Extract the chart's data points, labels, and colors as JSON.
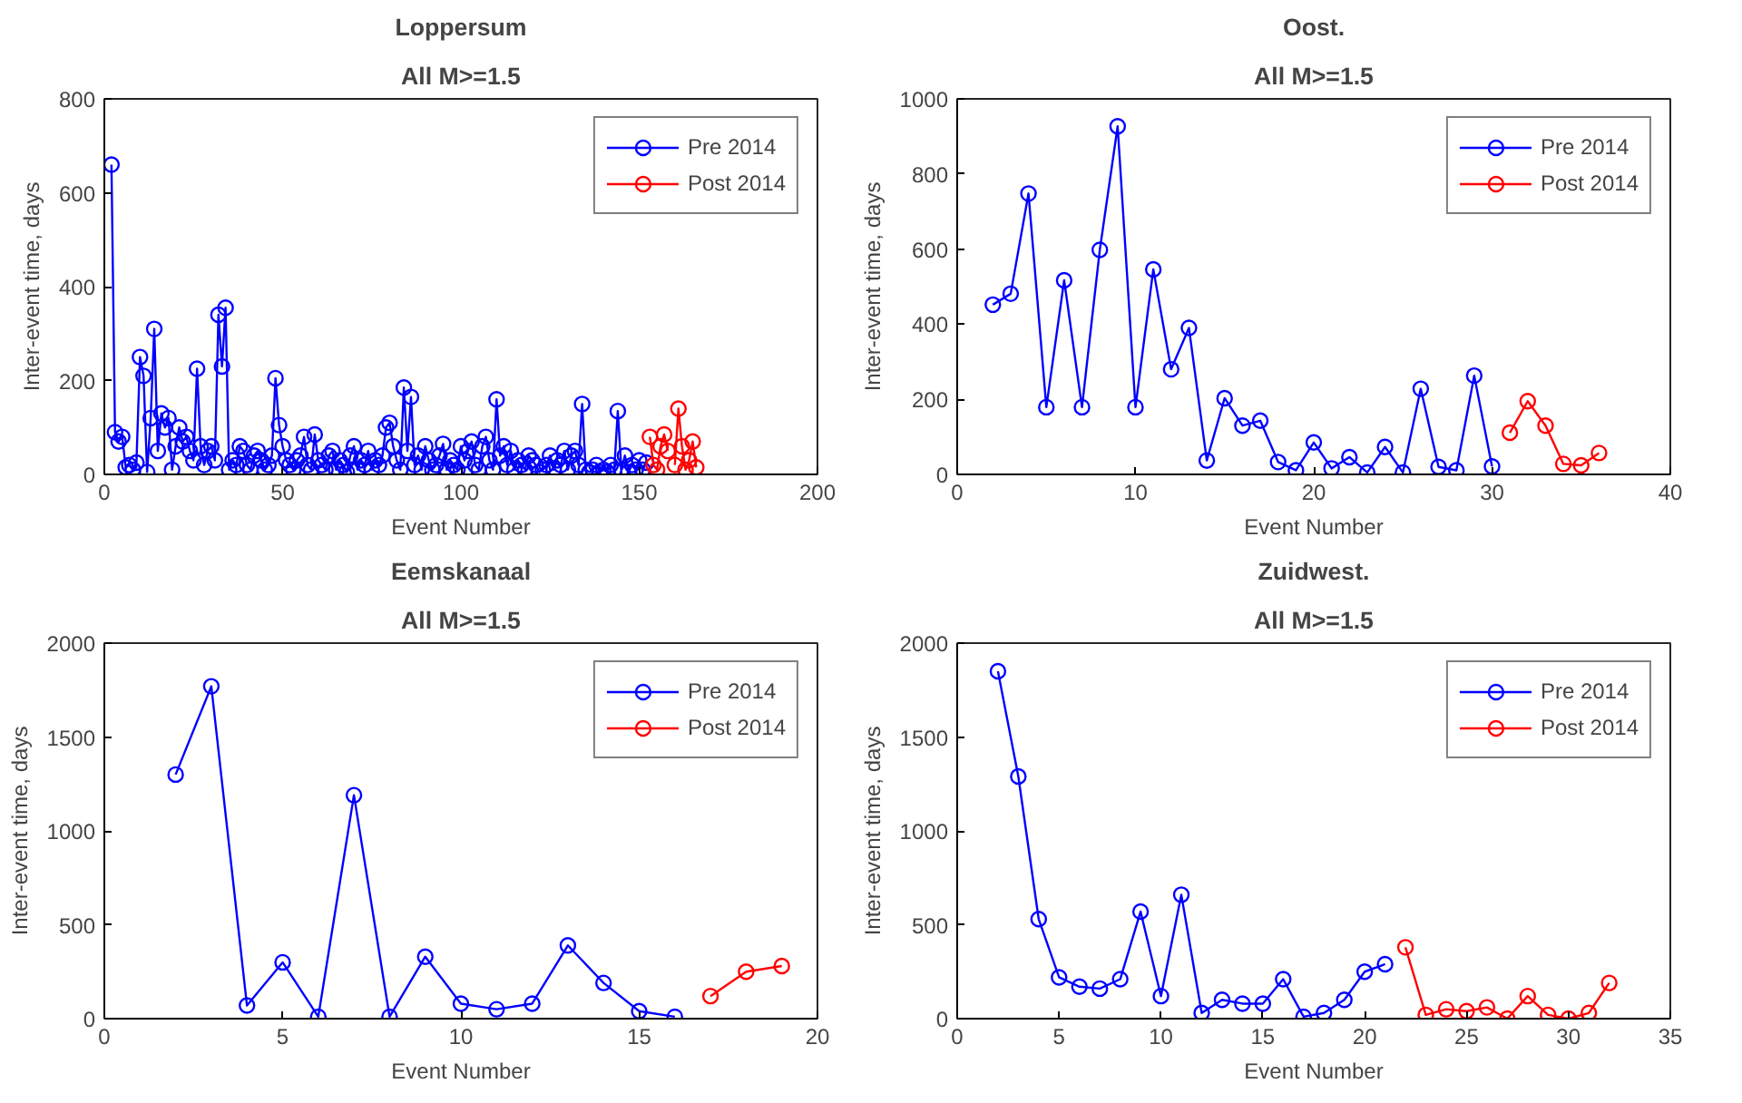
{
  "chart_data": [
    {
      "type": "line",
      "title": "Loppersum",
      "subtitle": "All M>=1.5",
      "xlabel": "Event Number",
      "ylabel": "Inter-event time, days",
      "xlim": [
        0,
        200
      ],
      "xticks": [
        0,
        50,
        100,
        150,
        200
      ],
      "ylim": [
        0,
        800
      ],
      "yticks": [
        0,
        200,
        400,
        600,
        800
      ],
      "marker": "circle",
      "legend": "top right",
      "grid": false,
      "series": [
        {
          "name": "Pre 2014",
          "color": "#0000ff",
          "x": [
            2,
            3,
            4,
            5,
            6,
            7,
            8,
            9,
            10,
            11,
            12,
            13,
            14,
            15,
            16,
            17,
            18,
            19,
            20,
            21,
            22,
            23,
            24,
            25,
            26,
            27,
            28,
            29,
            30,
            31,
            32,
            33,
            34,
            35,
            36,
            37,
            38,
            39,
            40,
            41,
            42,
            43,
            44,
            45,
            46,
            47,
            48,
            49,
            50,
            51,
            52,
            53,
            54,
            55,
            56,
            57,
            58,
            59,
            60,
            61,
            62,
            63,
            64,
            65,
            66,
            67,
            68,
            69,
            70,
            71,
            72,
            73,
            74,
            75,
            76,
            77,
            78,
            79,
            80,
            81,
            82,
            83,
            84,
            85,
            86,
            87,
            88,
            89,
            90,
            91,
            92,
            93,
            94,
            95,
            96,
            97,
            98,
            99,
            100,
            101,
            102,
            103,
            104,
            105,
            106,
            107,
            108,
            109,
            110,
            111,
            112,
            113,
            114,
            115,
            116,
            117,
            118,
            119,
            120,
            121,
            122,
            123,
            124,
            125,
            126,
            127,
            128,
            129,
            130,
            131,
            132,
            133,
            134,
            135,
            136,
            137,
            138,
            139,
            140,
            141,
            142,
            143,
            144,
            145,
            146,
            147,
            148,
            149,
            150,
            151,
            152
          ],
          "values": [
            660,
            90,
            70,
            80,
            15,
            20,
            10,
            25,
            250,
            210,
            5,
            120,
            310,
            50,
            130,
            100,
            120,
            10,
            60,
            100,
            70,
            80,
            50,
            30,
            225,
            60,
            20,
            50,
            60,
            30,
            340,
            230,
            355,
            10,
            30,
            20,
            60,
            50,
            20,
            10,
            40,
            50,
            30,
            10,
            20,
            40,
            205,
            105,
            60,
            30,
            20,
            10,
            30,
            40,
            80,
            20,
            10,
            85,
            30,
            20,
            10,
            40,
            50,
            10,
            30,
            20,
            5,
            40,
            60,
            10,
            30,
            20,
            50,
            10,
            30,
            20,
            40,
            100,
            110,
            60,
            30,
            10,
            185,
            50,
            165,
            20,
            40,
            10,
            60,
            30,
            10,
            20,
            40,
            65,
            10,
            30,
            20,
            10,
            60,
            30,
            50,
            70,
            20,
            10,
            60,
            80,
            30,
            10,
            160,
            40,
            60,
            20,
            50,
            10,
            30,
            20,
            10,
            40,
            30,
            20,
            5,
            10,
            20,
            40,
            10,
            30,
            20,
            50,
            10,
            40,
            50,
            20,
            150,
            10,
            5,
            10,
            20,
            5,
            10,
            5,
            20,
            10,
            135,
            10,
            40,
            5,
            20,
            10,
            30,
            10,
            25
          ]
        },
        {
          "name": "Post 2014",
          "color": "#ff0000",
          "x": [
            153,
            154,
            155,
            156,
            157,
            158,
            159,
            160,
            161,
            162,
            163,
            164,
            165,
            166
          ],
          "values": [
            80,
            20,
            10,
            60,
            85,
            50,
            null,
            20,
            140,
            60,
            10,
            30,
            70,
            15
          ]
        }
      ]
    },
    {
      "type": "line",
      "title": "Oost.",
      "subtitle": "All M>=1.5",
      "xlabel": "Event Number",
      "ylabel": "Inter-event time, days",
      "xlim": [
        0,
        40
      ],
      "xticks": [
        0,
        10,
        20,
        30,
        40
      ],
      "ylim": [
        0,
        1000
      ],
      "yticks": [
        0,
        200,
        400,
        600,
        800,
        1000
      ],
      "marker": "circle",
      "legend": "top right",
      "grid": false,
      "series": [
        {
          "name": "Pre 2014",
          "color": "#0000ff",
          "x": [
            2,
            3,
            4,
            5,
            6,
            7,
            8,
            9,
            10,
            11,
            12,
            13,
            14,
            15,
            16,
            17,
            18,
            19,
            20,
            21,
            22,
            23,
            24,
            25,
            26,
            27,
            28,
            29,
            30
          ],
          "values": [
            452,
            481,
            748,
            179,
            517,
            179,
            598,
            927,
            179,
            546,
            280,
            390,
            37,
            203,
            130,
            143,
            33,
            11,
            85,
            16,
            46,
            5,
            73,
            5,
            228,
            20,
            11,
            263,
            21
          ]
        },
        {
          "name": "Post 2014",
          "color": "#ff0000",
          "x": [
            31,
            32,
            33,
            34,
            35,
            36
          ],
          "values": [
            111,
            195,
            130,
            28,
            24,
            57
          ]
        }
      ]
    },
    {
      "type": "line",
      "title": "Eemskanaal",
      "subtitle": "All M>=1.5",
      "xlabel": "Event Number",
      "ylabel": "Inter-event time, days",
      "xlim": [
        0,
        20
      ],
      "xticks": [
        0,
        5,
        10,
        15,
        20
      ],
      "ylim": [
        0,
        2000
      ],
      "yticks": [
        0,
        500,
        1000,
        1500,
        2000
      ],
      "marker": "circle",
      "legend": "top right",
      "grid": false,
      "series": [
        {
          "name": "Pre 2014",
          "color": "#0000ff",
          "x": [
            2,
            3,
            4,
            5,
            6,
            7,
            8,
            9,
            10,
            11,
            12,
            13,
            14,
            15,
            16
          ],
          "values": [
            1300,
            1770,
            70,
            300,
            10,
            1190,
            10,
            330,
            80,
            50,
            80,
            390,
            190,
            40,
            10
          ]
        },
        {
          "name": "Post 2014",
          "color": "#ff0000",
          "x": [
            17,
            18,
            19
          ],
          "values": [
            120,
            250,
            280
          ]
        }
      ]
    },
    {
      "type": "line",
      "title": "Zuidwest.",
      "subtitle": "All M>=1.5",
      "xlabel": "Event Number",
      "ylabel": "Inter-event time, days",
      "xlim": [
        0,
        35
      ],
      "xticks": [
        0,
        5,
        10,
        15,
        20,
        25,
        30,
        35
      ],
      "ylim": [
        0,
        2000
      ],
      "yticks": [
        0,
        500,
        1000,
        1500,
        2000
      ],
      "marker": "circle",
      "legend": "top right",
      "grid": false,
      "series": [
        {
          "name": "Pre 2014",
          "color": "#0000ff",
          "x": [
            2,
            3,
            4,
            5,
            6,
            7,
            8,
            9,
            10,
            11,
            12,
            13,
            14,
            15,
            16,
            17,
            18,
            19,
            20,
            21
          ],
          "values": [
            1850,
            1290,
            530,
            220,
            170,
            160,
            210,
            570,
            120,
            660,
            30,
            100,
            80,
            80,
            210,
            10,
            30,
            100,
            250,
            290
          ]
        },
        {
          "name": "Post 2014",
          "color": "#ff0000",
          "x": [
            22,
            23,
            24,
            25,
            26,
            27,
            28,
            29,
            30,
            31,
            32
          ],
          "values": [
            380,
            20,
            50,
            40,
            60,
            0,
            120,
            20,
            0,
            30,
            190
          ]
        }
      ]
    }
  ]
}
